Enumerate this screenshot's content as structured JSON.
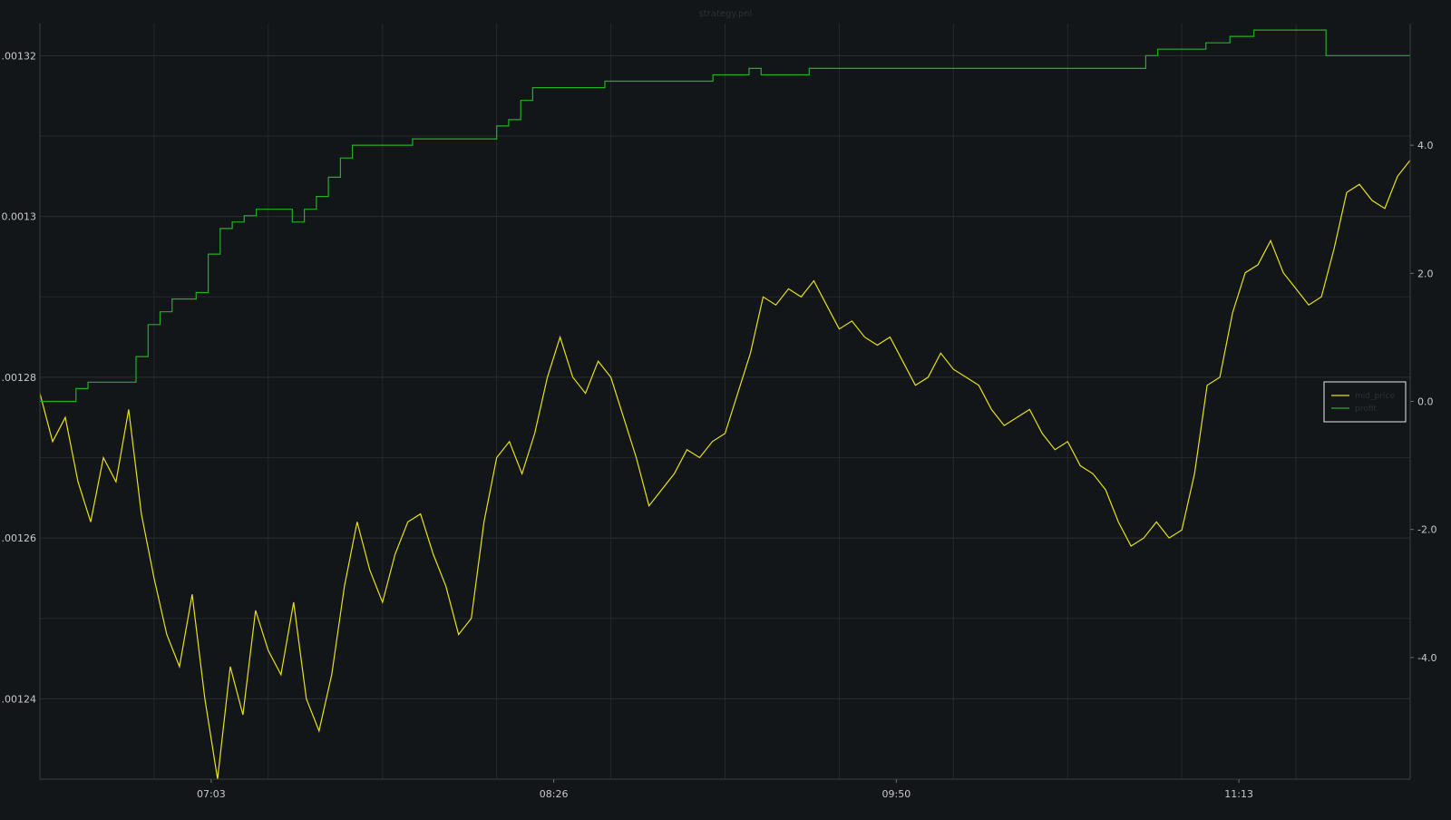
{
  "chart_data": {
    "type": "line",
    "title": "strategy.pnl",
    "x_ticks": [
      "07:03",
      "08:26",
      "09:50",
      "11:13"
    ],
    "left_axis": {
      "ticks": [
        {
          "label": ".00124",
          "value": 0.00124
        },
        {
          "label": ".00126",
          "value": 0.00126
        },
        {
          "label": ".00128",
          "value": 0.00128
        },
        {
          "label": "0.0013",
          "value": 0.0013
        },
        {
          "label": ".00132",
          "value": 0.00132
        }
      ],
      "range": [
        0.00123,
        0.001324
      ]
    },
    "right_axis": {
      "ticks": [
        {
          "label": "-4.0",
          "value": -4.0
        },
        {
          "label": "-2.0",
          "value": -2.0
        },
        {
          "label": "0.0",
          "value": 0.0
        },
        {
          "label": "2.0",
          "value": 2.0
        },
        {
          "label": "4.0",
          "value": 4.0
        }
      ],
      "range": [
        -5.9,
        5.9
      ]
    },
    "grid": true,
    "legend": {
      "position": "right",
      "entries": [
        "mid_price",
        "profit"
      ]
    },
    "series": [
      {
        "name": "mid_price",
        "axis": "left",
        "color": "#e6e01f",
        "values": [
          0.001278,
          0.001272,
          0.001275,
          0.001267,
          0.001262,
          0.00127,
          0.001267,
          0.001276,
          0.001263,
          0.001255,
          0.001248,
          0.001244,
          0.001253,
          0.00124,
          0.00123,
          0.001244,
          0.001238,
          0.001251,
          0.001246,
          0.001243,
          0.001252,
          0.00124,
          0.001236,
          0.001243,
          0.001254,
          0.001262,
          0.001256,
          0.001252,
          0.001258,
          0.001262,
          0.001263,
          0.001258,
          0.001254,
          0.001248,
          0.00125,
          0.001262,
          0.00127,
          0.001272,
          0.001268,
          0.001273,
          0.00128,
          0.001285,
          0.00128,
          0.001278,
          0.001282,
          0.00128,
          0.001275,
          0.00127,
          0.001264,
          0.001266,
          0.001268,
          0.001271,
          0.00127,
          0.001272,
          0.001273,
          0.001278,
          0.001283,
          0.00129,
          0.001289,
          0.001291,
          0.00129,
          0.001292,
          0.001289,
          0.001286,
          0.001287,
          0.001285,
          0.001284,
          0.001285,
          0.001282,
          0.001279,
          0.00128,
          0.001283,
          0.001281,
          0.00128,
          0.001279,
          0.001276,
          0.001274,
          0.001275,
          0.001276,
          0.001273,
          0.001271,
          0.001272,
          0.001269,
          0.001268,
          0.001266,
          0.001262,
          0.001259,
          0.00126,
          0.001262,
          0.00126,
          0.001261,
          0.001268,
          0.001279,
          0.00128,
          0.001288,
          0.001293,
          0.001294,
          0.001297,
          0.001293,
          0.001291,
          0.001289,
          0.00129,
          0.001296,
          0.001303,
          0.001304,
          0.001302,
          0.001301,
          0.001305,
          0.001307
        ],
        "x_start": 0.0,
        "x_end": 1.0
      },
      {
        "name": "profit",
        "axis": "right",
        "color": "#22b022",
        "values": [
          0.0,
          0.0,
          0.0,
          0.2,
          0.3,
          0.3,
          0.3,
          0.3,
          0.7,
          1.2,
          1.4,
          1.6,
          1.6,
          1.7,
          2.3,
          2.7,
          2.8,
          2.9,
          3.0,
          3.0,
          3.0,
          2.8,
          3.0,
          3.2,
          3.5,
          3.8,
          4.0,
          4.0,
          4.0,
          4.0,
          4.0,
          4.1,
          4.1,
          4.1,
          4.1,
          4.1,
          4.1,
          4.1,
          4.3,
          4.4,
          4.7,
          4.9,
          4.9,
          4.9,
          4.9,
          4.9,
          4.9,
          5.0,
          5.0,
          5.0,
          5.0,
          5.0,
          5.0,
          5.0,
          5.0,
          5.0,
          5.1,
          5.1,
          5.1,
          5.2,
          5.1,
          5.1,
          5.1,
          5.1,
          5.2,
          5.2,
          5.2,
          5.2,
          5.2,
          5.2,
          5.2,
          5.2,
          5.2,
          5.2,
          5.2,
          5.2,
          5.2,
          5.2,
          5.2,
          5.2,
          5.2,
          5.2,
          5.2,
          5.2,
          5.2,
          5.2,
          5.2,
          5.2,
          5.2,
          5.2,
          5.2,
          5.2,
          5.4,
          5.5,
          5.5,
          5.5,
          5.5,
          5.6,
          5.6,
          5.7,
          5.7,
          5.8,
          5.8,
          5.8,
          5.8,
          5.8,
          5.8,
          5.4,
          5.4,
          5.4,
          5.4,
          5.4,
          5.4,
          5.4,
          5.4
        ],
        "x_start": 0.0,
        "x_end": 1.0
      }
    ]
  }
}
